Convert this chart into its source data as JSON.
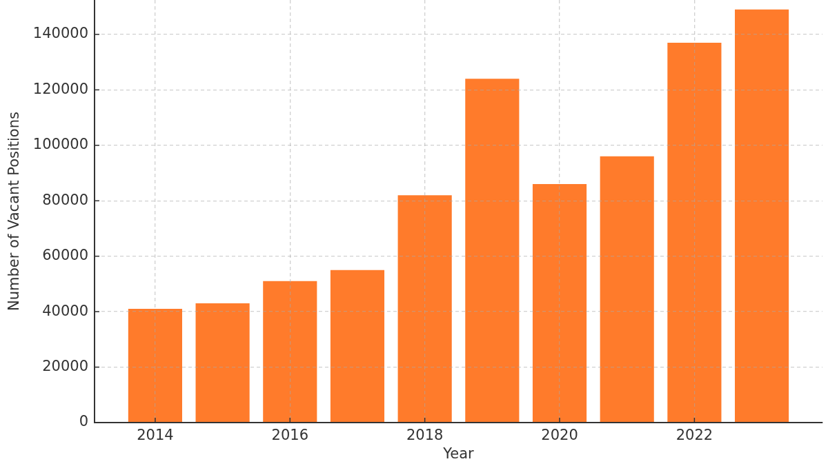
{
  "chart_data": {
    "type": "bar",
    "xlabel": "Year",
    "ylabel": "Number of Vacant Positions",
    "x": [
      2014,
      2015,
      2016,
      2017,
      2018,
      2019,
      2020,
      2021,
      2022,
      2023
    ],
    "values": [
      41000,
      43000,
      51000,
      55000,
      82000,
      124000,
      86000,
      96000,
      137000,
      149000
    ],
    "color": "#ff7b2b",
    "xlim": [
      2013.1,
      2023.9
    ],
    "xticks": [
      2014,
      2016,
      2018,
      2020,
      2022
    ],
    "ylim": [
      0,
      152400
    ],
    "yticks": [
      0,
      20000,
      40000,
      60000,
      80000,
      100000,
      120000,
      140000
    ],
    "grid": true
  }
}
